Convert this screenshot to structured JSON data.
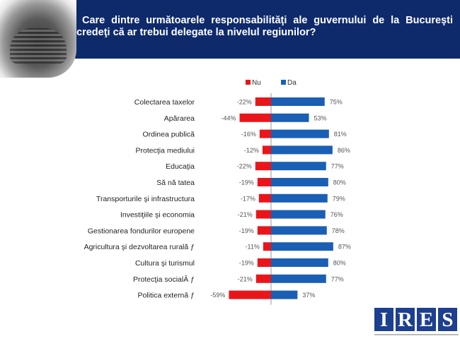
{
  "header": {
    "title_line1": "Care dintre următoarele responsabilităţi ale guvernului de la Bucureşti",
    "title_line2": "credeţi că ar trebui delegate la nivelul regiunilor?"
  },
  "logo": {
    "letters": [
      "I",
      "R",
      "E",
      "S"
    ]
  },
  "chart_data": {
    "type": "bar",
    "orientation": "horizontal-diverging",
    "title": "Care dintre următoarele responsabilităţi ale guvernului de la Bucureşti credeţi că ar trebui delegate la nivelul regiunilor?",
    "legend": [
      "Nu",
      "Da"
    ],
    "legend_placement": "top-center",
    "colors": {
      "Nu": "#e8161b",
      "Da": "#1a5fb4"
    },
    "categories": [
      "Colectarea taxelor",
      "Apărarea",
      "Ordinea publică",
      "Protecţia mediului",
      "Educaţia",
      "Să nă tatea",
      "Transporturile şi infrastructura",
      "Investiţiile şi economia",
      "Gestionarea fondurilor europene",
      "Agricultura şi dezvoltarea rurală ƒ",
      "Cultura şi turismul",
      "Protecţia socialĂ ƒ",
      "Politica externă ƒ"
    ],
    "series": [
      {
        "name": "Nu",
        "values": [
          -22,
          -44,
          -16,
          -12,
          -22,
          -19,
          -17,
          -21,
          -19,
          -11,
          -19,
          -21,
          -59
        ],
        "labels": [
          "-22%",
          "-44%",
          "-16%",
          "-12%",
          "-22%",
          "-19%",
          "-17%",
          "-21%",
          "-19%",
          "-11%",
          "-19%",
          "-21%",
          "-59%"
        ]
      },
      {
        "name": "Da",
        "values": [
          75,
          53,
          81,
          86,
          77,
          80,
          79,
          76,
          78,
          87,
          80,
          77,
          37
        ],
        "labels": [
          "75%",
          "53%",
          "81%",
          "86%",
          "77%",
          "80%",
          "79%",
          "76%",
          "78%",
          "87%",
          "80%",
          "77%",
          "37%"
        ]
      }
    ],
    "xlabel": "",
    "ylabel": "",
    "xlim": [
      -100,
      100
    ],
    "grid": false
  }
}
